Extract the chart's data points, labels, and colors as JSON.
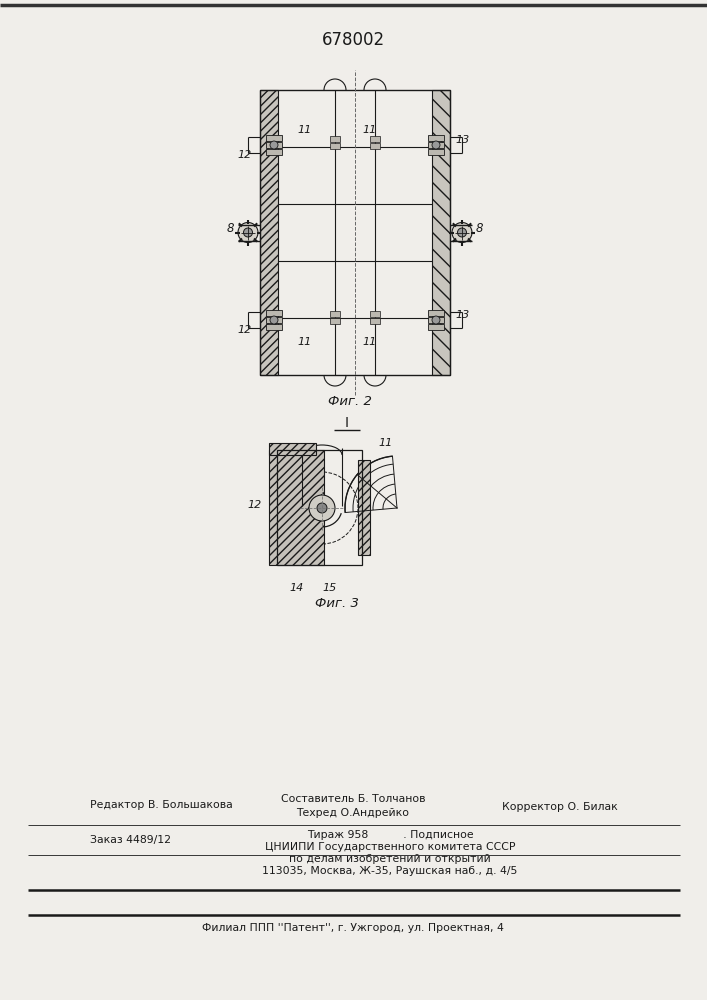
{
  "patent_number": "678002",
  "fig2_caption": "Фиг. 2",
  "fig3_caption": "Фиг. 3",
  "fig3_label": "I",
  "footer": {
    "line1_left": "Редактор В. Большакова",
    "line1_center_top": "Составитель Б. Толчанов",
    "line1_center_bot": "Техред О.Андрейко",
    "line1_right": "Корректор О. Билак",
    "line2_left": "Заказ 4489/12",
    "line2_center": "Тираж 958          . Подписное",
    "line2_center2": "ЦНИИПИ Государственного комитета СССР",
    "line2_center3": "по делам изобретений и открытий",
    "line2_center4": "113035, Москва, Ж-35, Раушская наб., д. 4/5",
    "line3": "Филиал ППП ''Патент'', г. Ужгород, ул. Проектная, 4"
  },
  "bg_color": "#f0eeea",
  "line_color": "#1a1a1a"
}
